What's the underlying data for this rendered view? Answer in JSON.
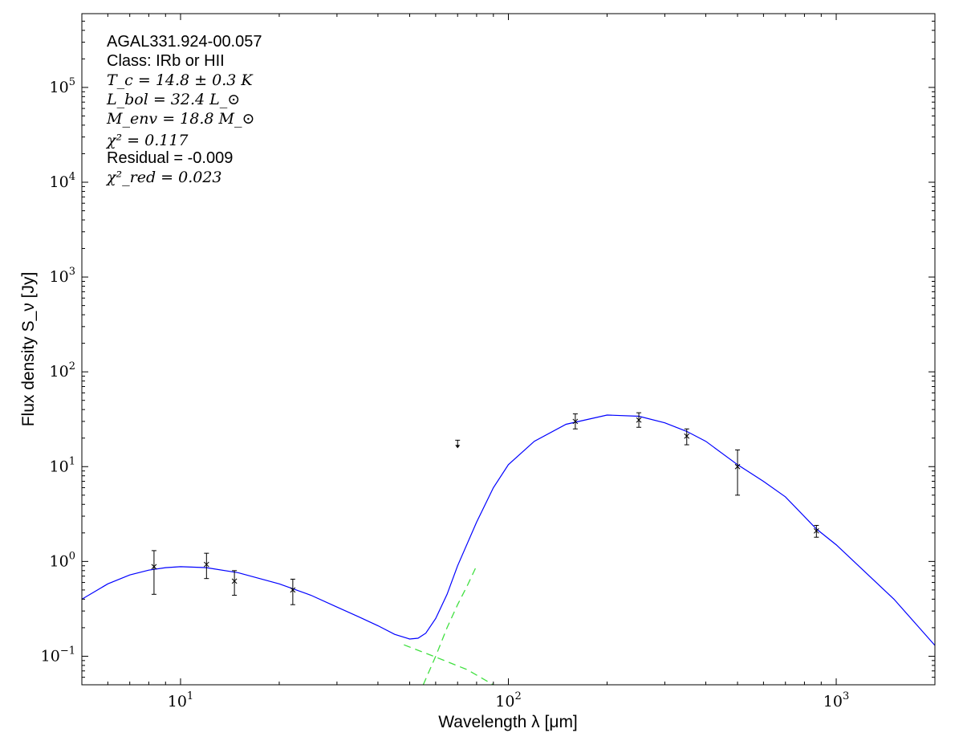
{
  "chart_data": {
    "type": "scatter",
    "xscale": "log",
    "yscale": "log",
    "xlim": [
      5,
      2000
    ],
    "ylim": [
      0.05,
      600000
    ],
    "xlabel": "Wavelength λ [μm]",
    "ylabel": "Flux density S_ν [Jy]",
    "x_ticks": [
      {
        "value": 10,
        "base": "10",
        "exp": "1"
      },
      {
        "value": 100,
        "base": "10",
        "exp": "2"
      },
      {
        "value": 1000,
        "base": "10",
        "exp": "3"
      }
    ],
    "y_ticks": [
      {
        "value": 0.1,
        "base": "10",
        "exp": "−1"
      },
      {
        "value": 1,
        "base": "10",
        "exp": "0"
      },
      {
        "value": 10,
        "base": "10",
        "exp": "1"
      },
      {
        "value": 100,
        "base": "10",
        "exp": "2"
      },
      {
        "value": 1000,
        "base": "10",
        "exp": "3"
      },
      {
        "value": 10000,
        "base": "10",
        "exp": "4"
      },
      {
        "value": 100000,
        "base": "10",
        "exp": "5"
      }
    ],
    "annotations": {
      "source": "AGAL331.924-00.057",
      "class_line": "Class: IRb or HII",
      "tc": "T_c = 14.8 ± 0.3 K",
      "lbol": "L_bol = 32.4 L_⊙",
      "menv": "M_env = 18.8 M_⊙",
      "chi2": "χ² = 0.117",
      "residual": "Residual = -0.009",
      "chi2red": "χ²_red = 0.023"
    },
    "points": [
      {
        "x": 8.3,
        "y": 0.88,
        "ylo": 0.45,
        "yhi": 1.3
      },
      {
        "x": 12,
        "y": 0.93,
        "ylo": 0.66,
        "yhi": 1.22
      },
      {
        "x": 14.6,
        "y": 0.62,
        "ylo": 0.44,
        "yhi": 0.8
      },
      {
        "x": 22,
        "y": 0.5,
        "ylo": 0.35,
        "yhi": 0.65
      },
      {
        "x": 160,
        "y": 30,
        "ylo": 25,
        "yhi": 36
      },
      {
        "x": 250,
        "y": 31,
        "ylo": 26,
        "yhi": 37
      },
      {
        "x": 350,
        "y": 21,
        "ylo": 17,
        "yhi": 25
      },
      {
        "x": 500,
        "y": 10,
        "ylo": 5,
        "yhi": 15
      },
      {
        "x": 870,
        "y": 2.1,
        "ylo": 1.8,
        "yhi": 2.4
      }
    ],
    "upper_limits": [
      {
        "x": 70,
        "y": 19
      }
    ],
    "model_total": {
      "color": "#0000ff",
      "points": [
        [
          5,
          0.4
        ],
        [
          6,
          0.58
        ],
        [
          7,
          0.72
        ],
        [
          8,
          0.81
        ],
        [
          9,
          0.86
        ],
        [
          10,
          0.88
        ],
        [
          12,
          0.86
        ],
        [
          15,
          0.76
        ],
        [
          20,
          0.58
        ],
        [
          25,
          0.44
        ],
        [
          30,
          0.33
        ],
        [
          35,
          0.26
        ],
        [
          40,
          0.21
        ],
        [
          45,
          0.17
        ],
        [
          50,
          0.152
        ],
        [
          53,
          0.155
        ],
        [
          56,
          0.175
        ],
        [
          60,
          0.25
        ],
        [
          65,
          0.45
        ],
        [
          70,
          0.9
        ],
        [
          80,
          2.6
        ],
        [
          90,
          6
        ],
        [
          100,
          10.5
        ],
        [
          120,
          18.5
        ],
        [
          150,
          28
        ],
        [
          200,
          35
        ],
        [
          250,
          34
        ],
        [
          300,
          29
        ],
        [
          350,
          23.5
        ],
        [
          400,
          18.5
        ],
        [
          500,
          10.5
        ],
        [
          600,
          7
        ],
        [
          700,
          4.8
        ],
        [
          870,
          2.2
        ],
        [
          1000,
          1.5
        ],
        [
          1500,
          0.4
        ],
        [
          2000,
          0.13
        ]
      ]
    },
    "model_components": {
      "color": "#40e040",
      "style": "dashed",
      "warm": [
        [
          48,
          0.132
        ],
        [
          60,
          0.098
        ],
        [
          75,
          0.072
        ],
        [
          90,
          0.05
        ]
      ],
      "cold": [
        [
          55,
          0.05
        ],
        [
          60,
          0.1
        ],
        [
          65,
          0.2
        ],
        [
          70,
          0.35
        ],
        [
          75,
          0.56
        ],
        [
          80,
          0.9
        ]
      ]
    }
  }
}
